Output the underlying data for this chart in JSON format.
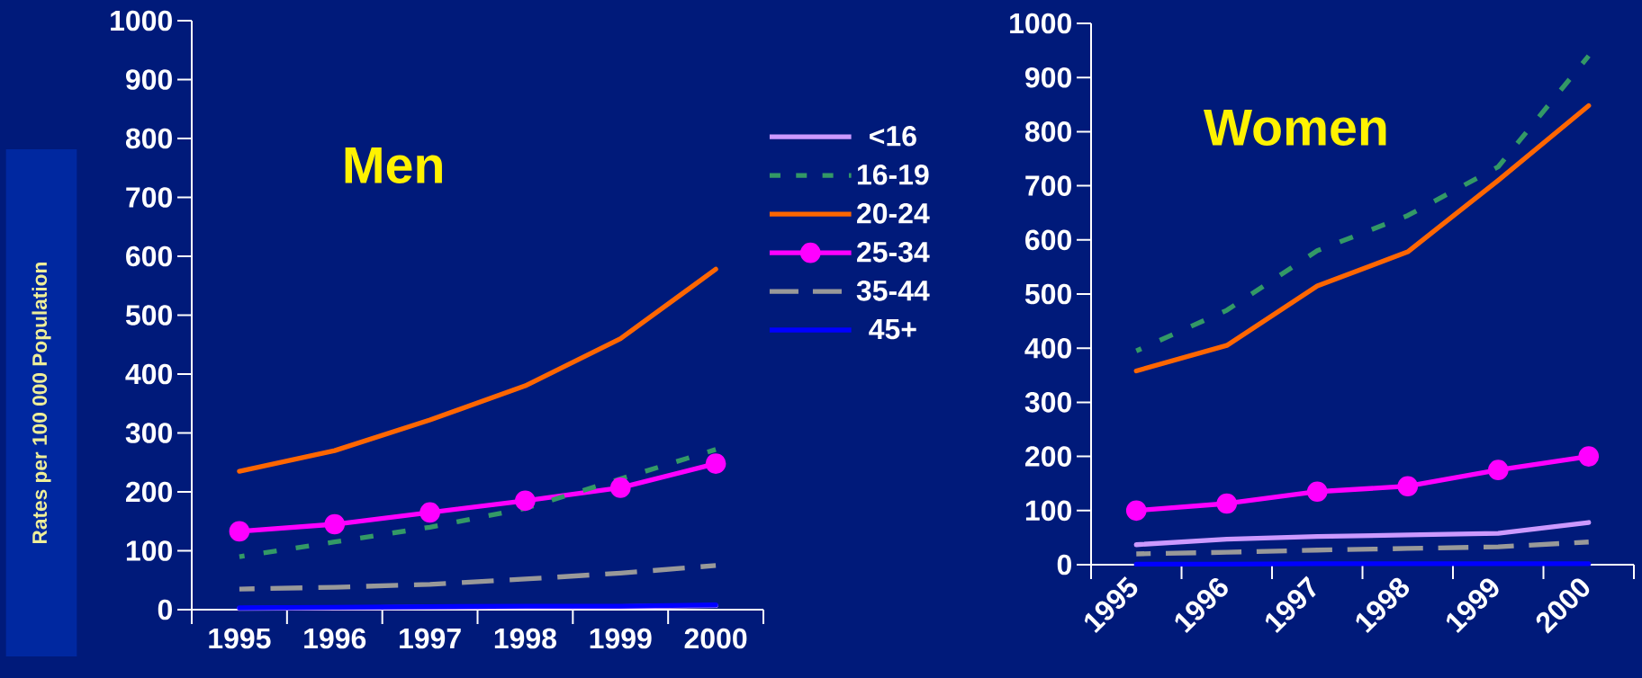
{
  "chart_data": [
    {
      "type": "line",
      "title": "Men",
      "ylabel": "Rates per 100 000 Population",
      "categories": [
        "1995",
        "1996",
        "1997",
        "1998",
        "1999",
        "2000"
      ],
      "ylim": [
        0,
        1000
      ],
      "yticks": [
        0,
        100,
        200,
        300,
        400,
        500,
        600,
        700,
        800,
        900,
        1000
      ],
      "legend": "right",
      "series": [
        {
          "name": "<16",
          "color": "#cc99ff",
          "line_style": "solid",
          "marker": "none",
          "values": [
            2,
            3,
            4,
            5,
            5,
            7
          ]
        },
        {
          "name": "16-19",
          "color": "#339966",
          "line_style": "dotted",
          "marker": "none",
          "values": [
            90,
            115,
            140,
            172,
            null,
            272
          ]
        },
        {
          "name": "20-24",
          "color": "#ff6600",
          "line_style": "solid",
          "marker": "none",
          "values": [
            235,
            270,
            322,
            380,
            460,
            578
          ]
        },
        {
          "name": "25-34",
          "color": "#ff00ff",
          "line_style": "solid",
          "marker": "circle",
          "values": [
            133,
            145,
            165,
            185,
            207,
            248
          ]
        },
        {
          "name": "35-44",
          "color": "#999999",
          "line_style": "dashed",
          "marker": "none",
          "values": [
            35,
            38,
            43,
            52,
            62,
            75
          ]
        },
        {
          "name": "45+",
          "color": "#0000ff",
          "line_style": "solid",
          "marker": "none",
          "values": [
            3,
            4,
            5,
            6,
            6,
            8
          ]
        }
      ]
    },
    {
      "type": "line",
      "title": "Women",
      "categories": [
        "1995",
        "1996",
        "1997",
        "1998",
        "1999",
        "2000"
      ],
      "ylim": [
        0,
        1000
      ],
      "yticks": [
        0,
        100,
        200,
        300,
        400,
        500,
        600,
        700,
        800,
        900,
        1000
      ],
      "series": [
        {
          "color": "#cc99ff",
          "line_style": "solid",
          "marker": "none",
          "values": [
            37,
            47,
            52,
            55,
            58,
            78
          ]
        },
        {
          "color": "#339966",
          "line_style": "dotted",
          "marker": "none",
          "values": [
            395,
            470,
            580,
            645,
            735,
            940
          ]
        },
        {
          "color": "#ff6600",
          "line_style": "solid",
          "marker": "none",
          "values": [
            358,
            405,
            515,
            578,
            710,
            848
          ]
        },
        {
          "color": "#ff00ff",
          "line_style": "solid",
          "marker": "circle",
          "values": [
            100,
            113,
            135,
            145,
            175,
            200
          ]
        },
        {
          "color": "#999999",
          "line_style": "dashed",
          "marker": "none",
          "values": [
            20,
            23,
            27,
            30,
            33,
            42
          ]
        },
        {
          "color": "#0000ff",
          "line_style": "solid",
          "marker": "none",
          "values": [
            1,
            1,
            2,
            2,
            2,
            2
          ]
        }
      ]
    }
  ]
}
